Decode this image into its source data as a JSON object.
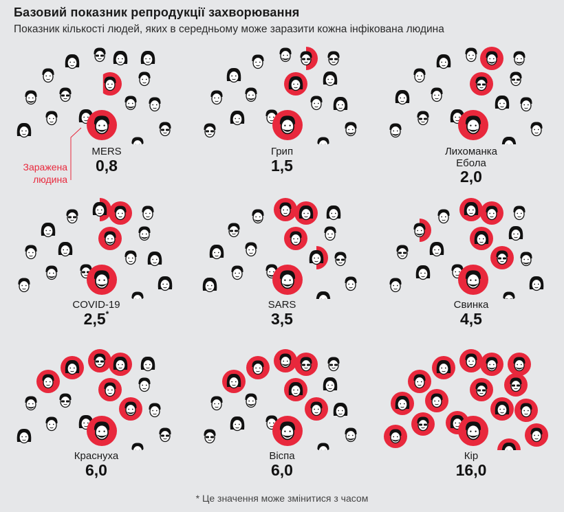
{
  "header": {
    "title": "Базовий показник репродукції захворювання",
    "subtitle": "Показник кількості людей, яких в середньому може заразити кожна інфікована людина"
  },
  "legend": {
    "infected_label": "Заражена людина"
  },
  "colors": {
    "infected": "#e8283c",
    "background": "#e6e7e9",
    "ink": "#111111"
  },
  "footnote": "* Це значення може змінитися з часом",
  "chart_data": {
    "type": "pictogram",
    "title": "Базовий показник репродукції захворювання",
    "subtitle": "Показник кількості людей, яких в середньому може заразити кожна інфікована людина",
    "diseases": [
      {
        "name": "MERS",
        "value": "0,8",
        "r0": 0.8
      },
      {
        "name": "Грип",
        "value": "1,5",
        "r0": 1.5
      },
      {
        "name": "Лихоманка Ебола",
        "value": "2,0",
        "r0": 2.0
      },
      {
        "name": "COVID-19",
        "value": "2,5",
        "r0": 2.5,
        "note": "*"
      },
      {
        "name": "SARS",
        "value": "3,5",
        "r0": 3.5
      },
      {
        "name": "Свинка",
        "value": "4,5",
        "r0": 4.5
      },
      {
        "name": "Краснуха",
        "value": "6,0",
        "r0": 6.0
      },
      {
        "name": "Віспа",
        "value": "6,0",
        "r0": 6.0
      },
      {
        "name": "Кір",
        "value": "16,0",
        "r0": 16.0
      }
    ]
  }
}
